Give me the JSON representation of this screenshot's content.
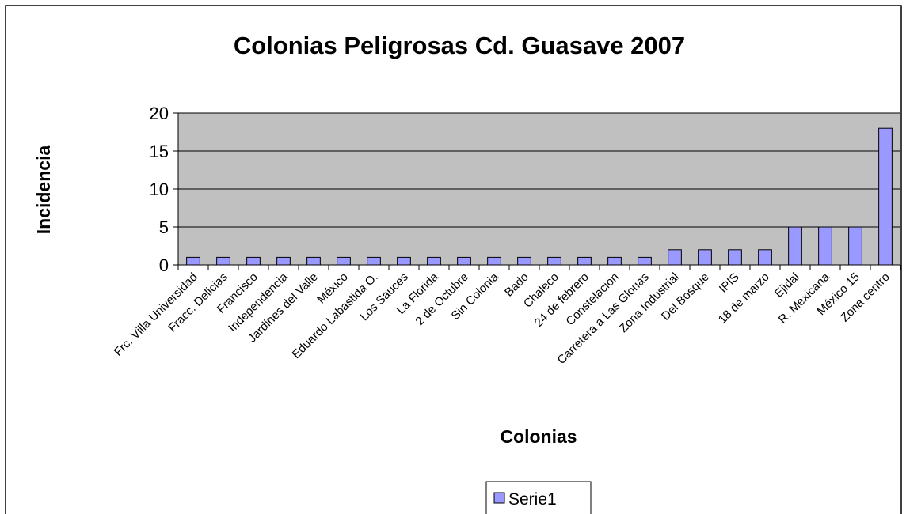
{
  "chart_data": {
    "type": "bar",
    "title": "Colonias Peligrosas Cd. Guasave 2007",
    "x_label": "Colonias",
    "y_label": "Incidencia",
    "categories": [
      "Frc. Villa Universidad",
      "Fracc. Delicias",
      "Francisco",
      "Independencia",
      "Jardines del Valle",
      "México",
      "Eduardo Labastida O.",
      "Los Sauces",
      "La Florida",
      "2 de Octubre",
      "Sin Colonia",
      "Bado",
      "Chaleco",
      "24 de febrero",
      "Constelación",
      "Carretera a Las Glorias",
      "Zona Industrial",
      "Del Bosque",
      "IPIS",
      "18 de marzo",
      "Ejidal",
      "R. Mexicana",
      "México 15",
      "Zona centro"
    ],
    "series": [
      {
        "name": "Serie1",
        "color": "#9999ff",
        "values": [
          1,
          1,
          1,
          1,
          1,
          1,
          1,
          1,
          1,
          1,
          1,
          1,
          1,
          1,
          1,
          1,
          2,
          2,
          2,
          2,
          5,
          5,
          5,
          18
        ]
      }
    ],
    "ylim": [
      0,
      20
    ],
    "yticks": [
      0,
      5,
      10,
      15,
      20
    ],
    "grid": true,
    "legend": "bottom"
  }
}
